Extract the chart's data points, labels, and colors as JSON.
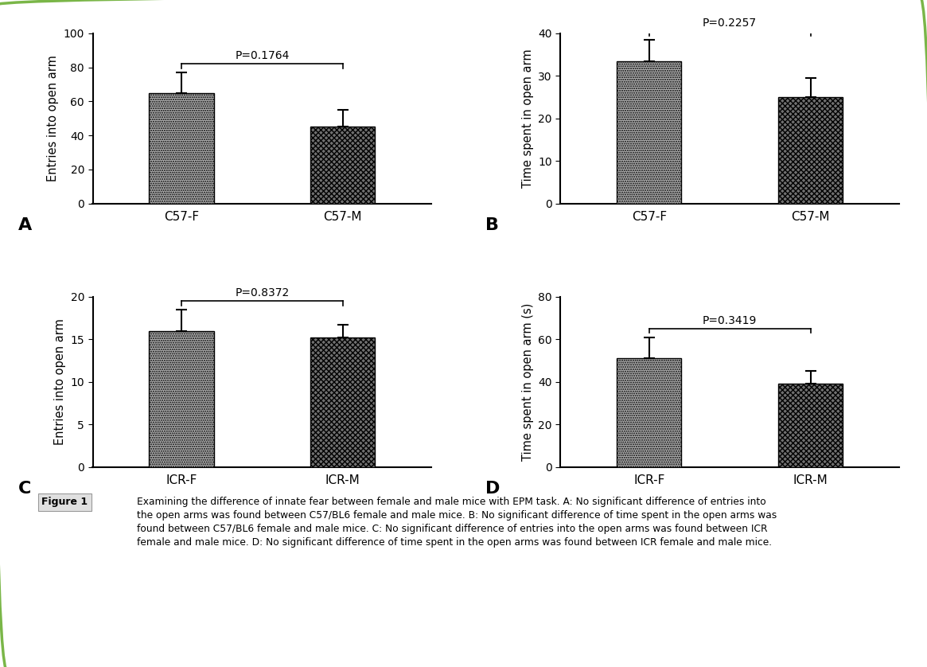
{
  "panels": [
    {
      "label": "A",
      "categories": [
        "C57-F",
        "C57-M"
      ],
      "values": [
        65.0,
        45.0
      ],
      "errors": [
        12.0,
        10.0
      ],
      "ylabel": "Entries into open arm",
      "ylim": [
        0,
        100
      ],
      "yticks": [
        0,
        20,
        40,
        60,
        80,
        100
      ],
      "pvalue": "P=0.1764"
    },
    {
      "label": "B",
      "categories": [
        "C57-F",
        "C57-M"
      ],
      "values": [
        33.5,
        25.0
      ],
      "errors": [
        5.0,
        4.5
      ],
      "ylabel": "Time spent in open arm",
      "ylim": [
        0,
        40
      ],
      "yticks": [
        0,
        10,
        20,
        30,
        40
      ],
      "pvalue": "P=0.2257"
    },
    {
      "label": "C",
      "categories": [
        "ICR-F",
        "ICR-M"
      ],
      "values": [
        16.0,
        15.2
      ],
      "errors": [
        2.5,
        1.5
      ],
      "ylabel": "Entries into open arm",
      "ylim": [
        0,
        20
      ],
      "yticks": [
        0,
        5,
        10,
        15,
        20
      ],
      "pvalue": "P=0.8372"
    },
    {
      "label": "D",
      "categories": [
        "ICR-F",
        "ICR-M"
      ],
      "values": [
        51.0,
        39.0
      ],
      "errors": [
        10.0,
        6.0
      ],
      "ylabel": "Time spent in open arm (s)",
      "ylim": [
        0,
        80
      ],
      "yticks": [
        0,
        20,
        40,
        60,
        80
      ],
      "pvalue": "P=0.3419"
    }
  ],
  "caption_label": "Figure 1",
  "caption_body": "Examining the difference of innate fear between female and male mice with EPM task. A: No significant difference of entries into the open arms was found between C57/BL6 female and male mice. B: No significant difference of time spent in the open arms was found between C57/BL6 female and male mice. C: No significant difference of entries into the open arms was found between ICR female and male mice. D: No significant difference of time spent in the open arms was found between ICR female and male mice.",
  "background_color": "#ffffff",
  "outer_border_color": "#7ab648",
  "bar_width": 0.4
}
